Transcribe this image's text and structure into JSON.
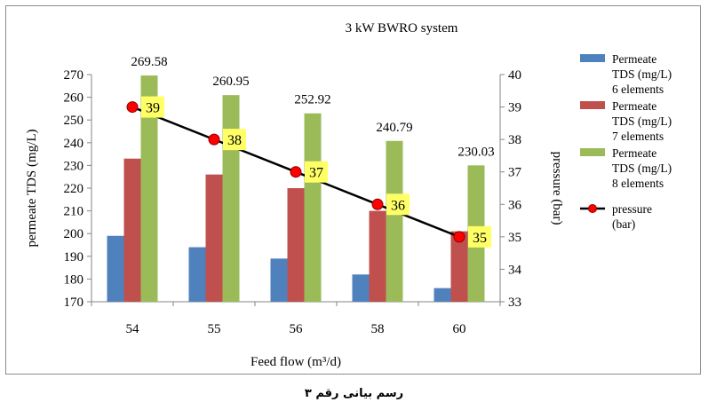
{
  "caption": "رسم بیانی رقم ۳",
  "colors": {
    "series6": "#4f81bd",
    "series7": "#c0504d",
    "series8": "#9bbb59",
    "pressure_line": "#000000",
    "pressure_marker": "#ff0000",
    "pressure_label_bg": "#ffff66"
  },
  "chart_data": {
    "type": "bar",
    "title": "3 kW BWRO system",
    "xlabel": "Feed flow (m³/d)",
    "ylabel": "permeate TDS (mg/L)",
    "y2label": "pressure (bar)",
    "categories": [
      "54",
      "55",
      "56",
      "58",
      "60"
    ],
    "ylim": [
      170,
      270
    ],
    "yticks": [
      170,
      180,
      190,
      200,
      210,
      220,
      230,
      240,
      250,
      260,
      270
    ],
    "y2lim": [
      33,
      40
    ],
    "y2ticks": [
      33,
      34,
      35,
      36,
      37,
      38,
      39,
      40
    ],
    "series": [
      {
        "name": "Permeate TDS (mg/L) 6 elements",
        "legend_lines": [
          "Permeate",
          "TDS (mg/L)",
          "6 elements"
        ],
        "type": "bar",
        "values": [
          199,
          194,
          189,
          182,
          176
        ]
      },
      {
        "name": "Permeate TDS (mg/L) 7 elements",
        "legend_lines": [
          "Permeate",
          "TDS (mg/L)",
          "7 elements"
        ],
        "type": "bar",
        "values": [
          233,
          226,
          220,
          210,
          201
        ]
      },
      {
        "name": "Permeate TDS (mg/L) 8 elements",
        "legend_lines": [
          "Permeate",
          "TDS (mg/L)",
          "8 elements"
        ],
        "type": "bar",
        "values": [
          269.58,
          260.95,
          252.92,
          240.79,
          230.03
        ],
        "data_labels": [
          "269.58",
          "260.95",
          "252.92",
          "240.79",
          "230.03"
        ]
      },
      {
        "name": "pressure (bar)",
        "legend_lines": [
          "pressure",
          "(bar)"
        ],
        "type": "line",
        "axis": "right",
        "values": [
          39,
          38,
          37,
          36,
          35
        ],
        "data_labels": [
          "39",
          "38",
          "37",
          "36",
          "35"
        ]
      }
    ],
    "grid": false,
    "legend": "right"
  }
}
